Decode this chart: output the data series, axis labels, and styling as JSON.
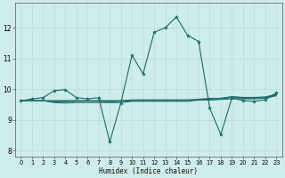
{
  "xlabel": "Humidex (Indice chaleur)",
  "bg_color": "#ceecea",
  "grid_color": "#b8dcd9",
  "line_color": "#1a6b65",
  "xlim": [
    -0.5,
    23.5
  ],
  "ylim": [
    7.8,
    12.8
  ],
  "xticks": [
    0,
    1,
    2,
    3,
    4,
    5,
    6,
    7,
    8,
    9,
    10,
    11,
    12,
    13,
    14,
    15,
    16,
    17,
    18,
    19,
    20,
    21,
    22,
    23
  ],
  "yticks": [
    8,
    9,
    10,
    11,
    12
  ],
  "s1_x": [
    0,
    1,
    2,
    3,
    4,
    5,
    6,
    7,
    8,
    9,
    10,
    11,
    12,
    13,
    14,
    15,
    16,
    17,
    18,
    19,
    20,
    21,
    22,
    23
  ],
  "s1_y": [
    9.62,
    9.68,
    9.72,
    9.95,
    9.98,
    9.72,
    9.68,
    9.72,
    8.28,
    9.55,
    11.1,
    10.5,
    11.85,
    12.0,
    12.35,
    11.75,
    11.55,
    9.38,
    8.52,
    9.72,
    9.62,
    9.6,
    9.65,
    9.88
  ],
  "s2_x": [
    0,
    1,
    2,
    3,
    4,
    5,
    6,
    7,
    8,
    9,
    10,
    11,
    12,
    13,
    14,
    15,
    16,
    17,
    18,
    19,
    20,
    21,
    22,
    23
  ],
  "s2_y": [
    9.62,
    9.62,
    9.62,
    9.58,
    9.58,
    9.6,
    9.6,
    9.6,
    9.58,
    9.6,
    9.62,
    9.63,
    9.63,
    9.63,
    9.63,
    9.63,
    9.65,
    9.67,
    9.7,
    9.75,
    9.72,
    9.72,
    9.74,
    9.82
  ],
  "s3_x": [
    0,
    1,
    2,
    3,
    4,
    5,
    6,
    7,
    8,
    9,
    10,
    11,
    12,
    13,
    14,
    15,
    16,
    17,
    18,
    19,
    20,
    21,
    22,
    23
  ],
  "s3_y": [
    9.62,
    9.62,
    9.62,
    9.56,
    9.54,
    9.56,
    9.56,
    9.56,
    9.56,
    9.56,
    9.6,
    9.6,
    9.6,
    9.6,
    9.6,
    9.6,
    9.64,
    9.64,
    9.66,
    9.68,
    9.68,
    9.68,
    9.7,
    9.78
  ],
  "s4_x": [
    0,
    1,
    2,
    3,
    4,
    5,
    6,
    7,
    8,
    9,
    10,
    11,
    12,
    13,
    14,
    15,
    16,
    17,
    18,
    19,
    20,
    21,
    22,
    23
  ],
  "s4_y": [
    9.62,
    9.62,
    9.62,
    9.62,
    9.62,
    9.62,
    9.62,
    9.62,
    9.62,
    9.62,
    9.62,
    9.63,
    9.63,
    9.63,
    9.63,
    9.63,
    9.65,
    9.68,
    9.68,
    9.72,
    9.7,
    9.7,
    9.72,
    9.8
  ],
  "s5_x": [
    0,
    1,
    2,
    3,
    4,
    5,
    6,
    7,
    8,
    9,
    10,
    11,
    12,
    13,
    14,
    15,
    16,
    17,
    18,
    19,
    20,
    21,
    22,
    23
  ],
  "s5_y": [
    9.62,
    9.62,
    9.62,
    9.62,
    9.62,
    9.62,
    9.62,
    9.62,
    9.62,
    9.62,
    9.65,
    9.65,
    9.65,
    9.65,
    9.65,
    9.65,
    9.67,
    9.7,
    9.7,
    9.75,
    9.73,
    9.73,
    9.74,
    9.83
  ]
}
